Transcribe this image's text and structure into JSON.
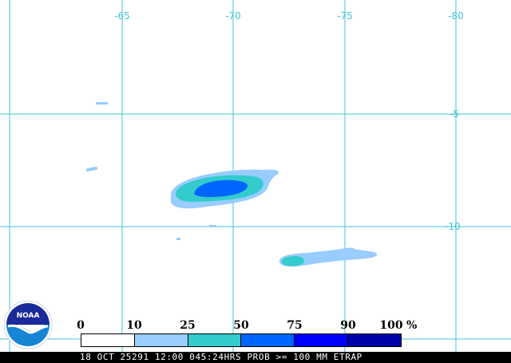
{
  "map": {
    "grid_color": "#3fc4d8",
    "longitudes": [
      "-65",
      "-70",
      "-75",
      "-80"
    ],
    "latitudes": [
      "-5",
      "-10"
    ]
  },
  "legend": {
    "ticks": [
      "0",
      "10",
      "25",
      "50",
      "75",
      "90",
      "100"
    ],
    "unit": "%",
    "colors": [
      "#ffffff",
      "#99ccff",
      "#33cccc",
      "#0066ff",
      "#0000ff",
      "#0000aa"
    ]
  },
  "status_bar": {
    "text": "18 OCT 25291 12:00 045:24HRS PROB >= 100 MM ETRAP"
  },
  "logo": {
    "text": "NOAA"
  }
}
